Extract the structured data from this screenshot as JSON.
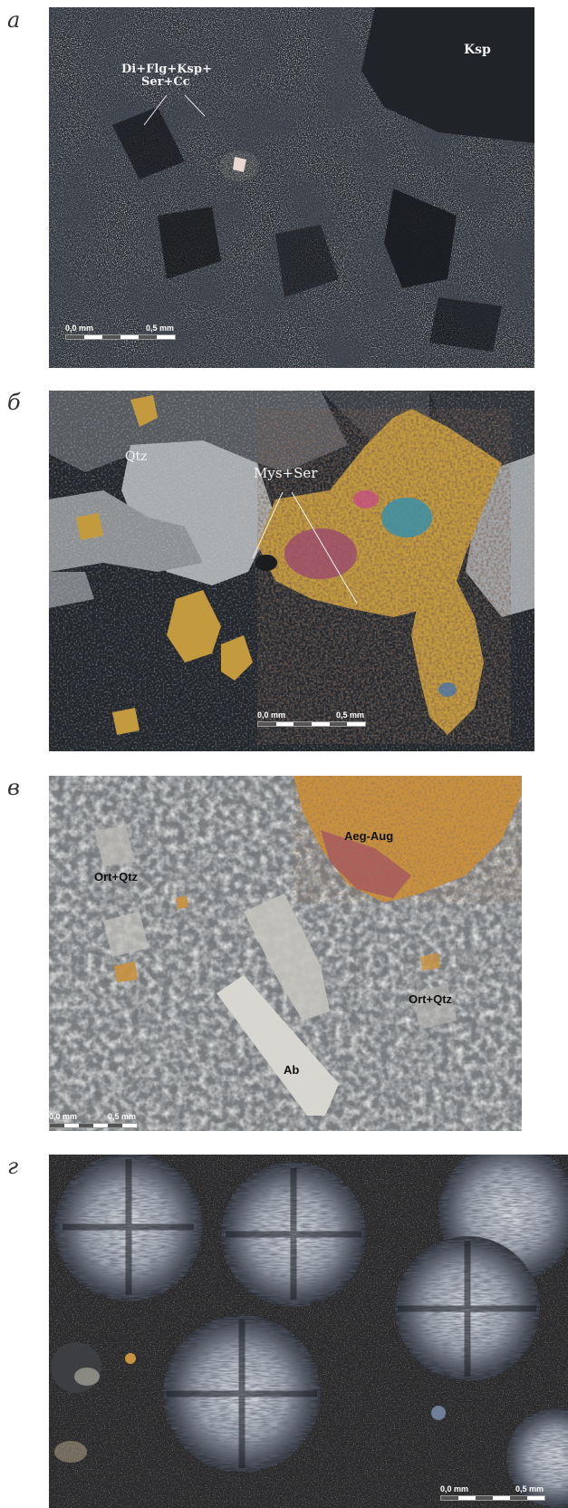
{
  "panels": [
    {
      "letter": "а",
      "labels": [
        "Di+Flg+Ksp+",
        "Ser+Cc",
        "Ksp"
      ],
      "scale": {
        "start": "0,0 mm",
        "end": "0,5 mm"
      }
    },
    {
      "letter": "б",
      "labels": [
        "Qtz",
        "Mys+Ser"
      ],
      "scale": {
        "start": "0,0 mm",
        "end": "0,5 mm"
      }
    },
    {
      "letter": "в",
      "labels": [
        "Aeg-Aug",
        "Ort+Qtz",
        "Ort+Qtz",
        "Ab"
      ],
      "scale": {
        "start": "0,0 mm",
        "end": "0,5 mm"
      }
    },
    {
      "letter": "г",
      "labels": [],
      "scale": {
        "start": "0,0 mm",
        "end": "0,5 mm"
      }
    }
  ]
}
